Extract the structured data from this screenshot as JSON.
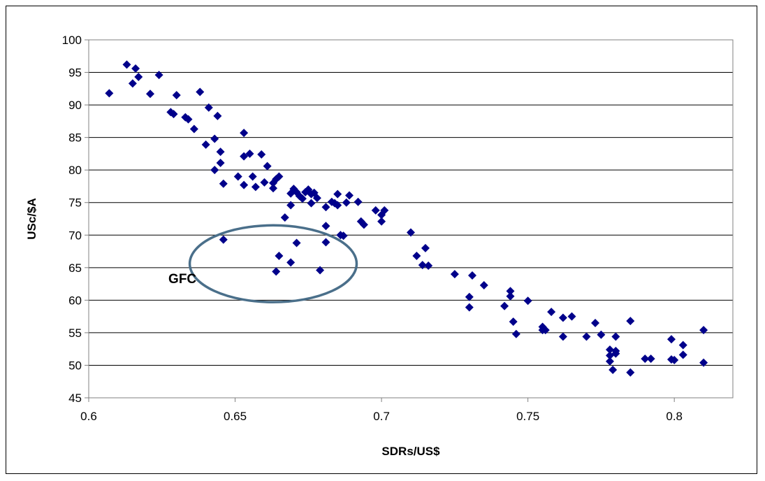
{
  "chart_data": {
    "type": "scatter",
    "title": "",
    "xlabel": "SDRs/US$",
    "ylabel": "USc/$A",
    "xlim": [
      0.6,
      0.82
    ],
    "ylim": [
      45,
      100
    ],
    "xticks": [
      "0.6",
      "0.65",
      "0.7",
      "0.75",
      "0.8"
    ],
    "xtick_values": [
      0.6,
      0.65,
      0.7,
      0.75,
      0.8
    ],
    "yticks": [
      "45",
      "50",
      "55",
      "60",
      "65",
      "70",
      "75",
      "80",
      "85",
      "90",
      "95",
      "100"
    ],
    "ytick_values": [
      45,
      50,
      55,
      60,
      65,
      70,
      75,
      80,
      85,
      90,
      95,
      100
    ],
    "grid": "horizontal",
    "legend": "none",
    "marker_color": "#00008B",
    "marker": "diamond",
    "annotation": {
      "label": "GFC",
      "shape": "ellipse",
      "color": "#4A6F8A",
      "center": [
        0.663,
        65.6
      ],
      "x_radius": 0.0285,
      "y_radius": 5.9,
      "label_at": [
        0.632,
        62.6
      ]
    },
    "points": [
      [
        0.607,
        91.8
      ],
      [
        0.613,
        96.2
      ],
      [
        0.615,
        93.3
      ],
      [
        0.616,
        95.6
      ],
      [
        0.617,
        94.3
      ],
      [
        0.621,
        91.7
      ],
      [
        0.624,
        94.6
      ],
      [
        0.628,
        88.9
      ],
      [
        0.629,
        88.6
      ],
      [
        0.63,
        91.5
      ],
      [
        0.633,
        88.1
      ],
      [
        0.634,
        87.8
      ],
      [
        0.636,
        86.3
      ],
      [
        0.638,
        92.0
      ],
      [
        0.64,
        83.9
      ],
      [
        0.641,
        89.6
      ],
      [
        0.643,
        84.8
      ],
      [
        0.643,
        80.0
      ],
      [
        0.644,
        88.3
      ],
      [
        0.645,
        82.8
      ],
      [
        0.645,
        81.1
      ],
      [
        0.646,
        77.9
      ],
      [
        0.646,
        69.3
      ],
      [
        0.651,
        79.0
      ],
      [
        0.653,
        82.1
      ],
      [
        0.653,
        77.7
      ],
      [
        0.653,
        85.7
      ],
      [
        0.655,
        82.5
      ],
      [
        0.656,
        79.0
      ],
      [
        0.657,
        77.4
      ],
      [
        0.659,
        82.4
      ],
      [
        0.66,
        78.1
      ],
      [
        0.661,
        80.6
      ],
      [
        0.663,
        77.2
      ],
      [
        0.663,
        78.0
      ],
      [
        0.664,
        78.6
      ],
      [
        0.664,
        64.4
      ],
      [
        0.665,
        66.8
      ],
      [
        0.665,
        79.0
      ],
      [
        0.667,
        72.7
      ],
      [
        0.669,
        74.6
      ],
      [
        0.669,
        65.8
      ],
      [
        0.669,
        76.4
      ],
      [
        0.67,
        77.1
      ],
      [
        0.671,
        68.8
      ],
      [
        0.671,
        76.6
      ],
      [
        0.672,
        76.0
      ],
      [
        0.673,
        75.6
      ],
      [
        0.674,
        76.6
      ],
      [
        0.675,
        77.0
      ],
      [
        0.676,
        74.9
      ],
      [
        0.676,
        76.3
      ],
      [
        0.677,
        76.5
      ],
      [
        0.678,
        75.7
      ],
      [
        0.679,
        64.6
      ],
      [
        0.681,
        71.4
      ],
      [
        0.681,
        68.9
      ],
      [
        0.681,
        74.3
      ],
      [
        0.683,
        75.1
      ],
      [
        0.684,
        74.9
      ],
      [
        0.685,
        76.3
      ],
      [
        0.685,
        74.6
      ],
      [
        0.686,
        70.0
      ],
      [
        0.687,
        69.9
      ],
      [
        0.688,
        75.0
      ],
      [
        0.689,
        76.1
      ],
      [
        0.692,
        75.1
      ],
      [
        0.693,
        72.1
      ],
      [
        0.694,
        71.6
      ],
      [
        0.698,
        73.8
      ],
      [
        0.7,
        73.1
      ],
      [
        0.7,
        72.1
      ],
      [
        0.701,
        73.8
      ],
      [
        0.71,
        70.4
      ],
      [
        0.712,
        66.8
      ],
      [
        0.714,
        65.4
      ],
      [
        0.715,
        68.0
      ],
      [
        0.716,
        65.3
      ],
      [
        0.725,
        64.0
      ],
      [
        0.73,
        60.5
      ],
      [
        0.73,
        58.9
      ],
      [
        0.731,
        63.8
      ],
      [
        0.735,
        62.3
      ],
      [
        0.742,
        59.1
      ],
      [
        0.744,
        61.4
      ],
      [
        0.744,
        60.6
      ],
      [
        0.745,
        56.7
      ],
      [
        0.746,
        54.8
      ],
      [
        0.75,
        59.9
      ],
      [
        0.755,
        55.9
      ],
      [
        0.755,
        55.4
      ],
      [
        0.756,
        55.4
      ],
      [
        0.758,
        58.2
      ],
      [
        0.762,
        57.3
      ],
      [
        0.762,
        54.4
      ],
      [
        0.765,
        57.5
      ],
      [
        0.77,
        54.4
      ],
      [
        0.773,
        56.5
      ],
      [
        0.775,
        54.7
      ],
      [
        0.778,
        52.4
      ],
      [
        0.778,
        51.5
      ],
      [
        0.778,
        50.6
      ],
      [
        0.779,
        49.3
      ],
      [
        0.78,
        52.2
      ],
      [
        0.78,
        51.8
      ],
      [
        0.78,
        54.4
      ],
      [
        0.785,
        56.8
      ],
      [
        0.785,
        48.9
      ],
      [
        0.79,
        51.0
      ],
      [
        0.792,
        51.0
      ],
      [
        0.799,
        54.0
      ],
      [
        0.799,
        50.9
      ],
      [
        0.8,
        50.8
      ],
      [
        0.803,
        53.1
      ],
      [
        0.803,
        51.6
      ],
      [
        0.81,
        55.4
      ],
      [
        0.81,
        50.4
      ]
    ]
  }
}
